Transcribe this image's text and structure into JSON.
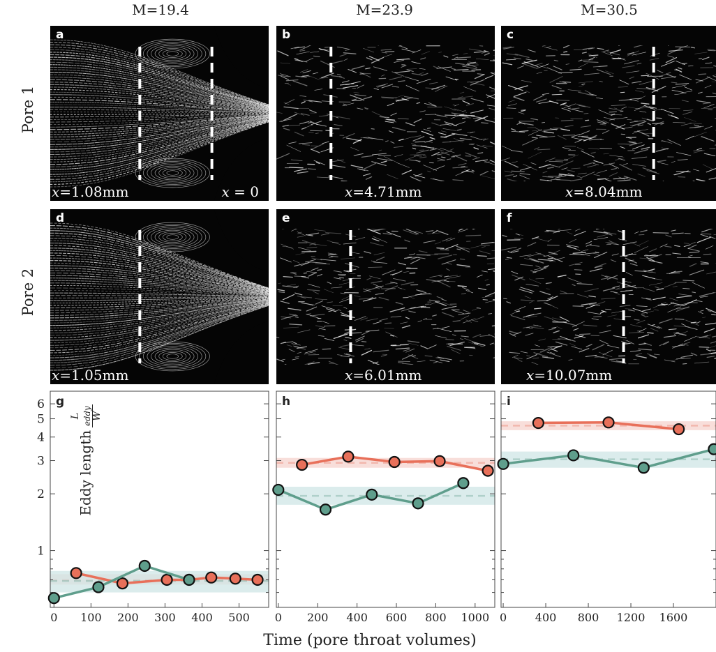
{
  "columns": [
    {
      "title": "M=19.4"
    },
    {
      "title": "M=23.9"
    },
    {
      "title": "M=30.5"
    }
  ],
  "rows": [
    {
      "label": "Pore 1"
    },
    {
      "label": "Pore 2"
    }
  ],
  "panels": {
    "a": {
      "letter": "a",
      "pos_left": "1.08mm",
      "pos_right": "= 0"
    },
    "b": {
      "letter": "b",
      "pos": "4.71mm"
    },
    "c": {
      "letter": "c",
      "pos": "8.04mm"
    },
    "d": {
      "letter": "d",
      "pos": "1.05mm"
    },
    "e": {
      "letter": "e",
      "pos": "6.01mm"
    },
    "f": {
      "letter": "f",
      "pos": "10.07mm"
    }
  },
  "x_symbol": "x",
  "y_label": "Eddy length",
  "y_frac_num": "L",
  "y_frac_sub": "eddy",
  "y_frac_den": "W",
  "x_label": "Time (pore throat volumes)",
  "colors": {
    "red": "#e8705a",
    "green": "#5f9e8c",
    "red_band": "#f5d3ce",
    "green_band": "#cfe6e6"
  },
  "chart_data": [
    {
      "type": "line",
      "letter": "g",
      "xlim": [
        -10,
        580
      ],
      "ylim": [
        0.5,
        7
      ],
      "yscale": "log",
      "xticks": [
        0,
        100,
        200,
        300,
        400,
        500
      ],
      "yticks": [
        1,
        2,
        3,
        4,
        5,
        6
      ],
      "series": [
        {
          "color": "red",
          "x": [
            60,
            185,
            305,
            365,
            425,
            490,
            550
          ],
          "y": [
            0.76,
            0.67,
            0.7,
            0.7,
            0.72,
            0.71,
            0.7
          ],
          "mean": 0.7,
          "band": [
            0.66,
            0.75
          ]
        },
        {
          "color": "green",
          "x": [
            0,
            120,
            245,
            365
          ],
          "y": [
            0.56,
            0.64,
            0.83,
            0.7
          ],
          "mean": 0.69,
          "band": [
            0.6,
            0.78
          ]
        }
      ]
    },
    {
      "type": "line",
      "letter": "h",
      "xlim": [
        -10,
        1100
      ],
      "ylim": [
        0.5,
        7
      ],
      "yscale": "log",
      "xticks": [
        0,
        200,
        400,
        600,
        800,
        1000
      ],
      "yticks": [
        1,
        2,
        3,
        4,
        5,
        6
      ],
      "series": [
        {
          "color": "red",
          "x": [
            120,
            355,
            590,
            820,
            1065
          ],
          "y": [
            2.85,
            3.15,
            2.95,
            2.98,
            2.65
          ],
          "mean": 2.92,
          "band": [
            2.75,
            3.1
          ]
        },
        {
          "color": "green",
          "x": [
            0,
            240,
            475,
            710,
            940
          ],
          "y": [
            2.1,
            1.65,
            1.98,
            1.78,
            2.28
          ],
          "mean": 1.95,
          "band": [
            1.75,
            2.18
          ]
        }
      ]
    },
    {
      "type": "line",
      "letter": "i",
      "xlim": [
        -20,
        2000
      ],
      "ylim": [
        0.5,
        7
      ],
      "yscale": "log",
      "xticks": [
        0,
        400,
        800,
        1200,
        1600
      ],
      "yticks": [
        1,
        2,
        3,
        4,
        5,
        6
      ],
      "series": [
        {
          "color": "red",
          "x": [
            330,
            990,
            1650
          ],
          "y": [
            4.75,
            4.78,
            4.4
          ],
          "mean": 4.6,
          "band": [
            4.35,
            4.85
          ]
        },
        {
          "color": "green",
          "x": [
            0,
            660,
            1320,
            1980
          ],
          "y": [
            2.88,
            3.2,
            2.75,
            3.45
          ],
          "mean": 3.05,
          "band": [
            2.75,
            3.35
          ]
        }
      ]
    }
  ]
}
